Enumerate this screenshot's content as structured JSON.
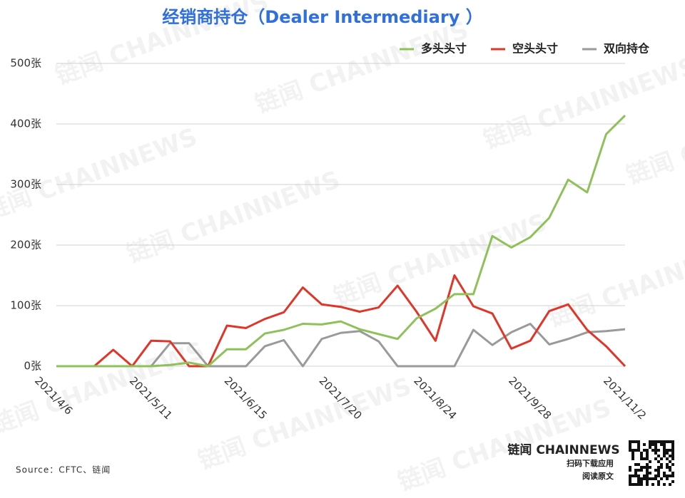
{
  "chart_data": {
    "type": "line",
    "title": "经销商持仓（Dealer Intermediary ）",
    "source": "Source：CFTC、链闻",
    "watermark": "链闻 CHAINNEWS",
    "brand": "链闻 CHAINNEWS",
    "brand_lines": [
      "扫码下载应用",
      "阅读原文"
    ],
    "categories": [
      "2021/4/6",
      null,
      null,
      null,
      null,
      "2021/5/11",
      null,
      null,
      null,
      null,
      "2021/6/15",
      null,
      null,
      null,
      null,
      "2021/7/20",
      null,
      null,
      null,
      null,
      "2021/8/24",
      null,
      null,
      null,
      null,
      "2021/9/28",
      null,
      null,
      null,
      null,
      "2021/11/2"
    ],
    "series": [
      {
        "name": "多头头寸",
        "color": "#8fc15a",
        "values": [
          0,
          0,
          0,
          0,
          0,
          0,
          2,
          6,
          0,
          28,
          28,
          54,
          60,
          70,
          69,
          74,
          61,
          53,
          45,
          79,
          95,
          119,
          119,
          215,
          196,
          213,
          245,
          308,
          287,
          383,
          414
        ]
      },
      {
        "name": "空头头寸",
        "color": "#e03529",
        "values": [
          0,
          0,
          0,
          27,
          0,
          42,
          41,
          0,
          0,
          67,
          63,
          78,
          89,
          130,
          102,
          98,
          90,
          97,
          133,
          90,
          42,
          150,
          99,
          87,
          29,
          42,
          91,
          102,
          60,
          33,
          0
        ]
      },
      {
        "name": "双向持仓",
        "color": "#9a9a9a",
        "values": [
          0,
          0,
          0,
          0,
          0,
          0,
          38,
          38,
          0,
          0,
          0,
          33,
          43,
          0,
          45,
          55,
          58,
          41,
          0,
          0,
          0,
          0,
          60,
          35,
          56,
          70,
          36,
          45,
          56,
          58,
          61
        ]
      }
    ],
    "ylim": [
      0,
      500
    ],
    "yticks": [
      {
        "value": 0,
        "label": "0张"
      },
      {
        "value": 100,
        "label": "100张"
      },
      {
        "value": 200,
        "label": "200张"
      },
      {
        "value": 300,
        "label": "300张"
      },
      {
        "value": 400,
        "label": "400张"
      },
      {
        "value": 500,
        "label": "500张"
      }
    ],
    "grid": true,
    "legend": "top-right"
  }
}
